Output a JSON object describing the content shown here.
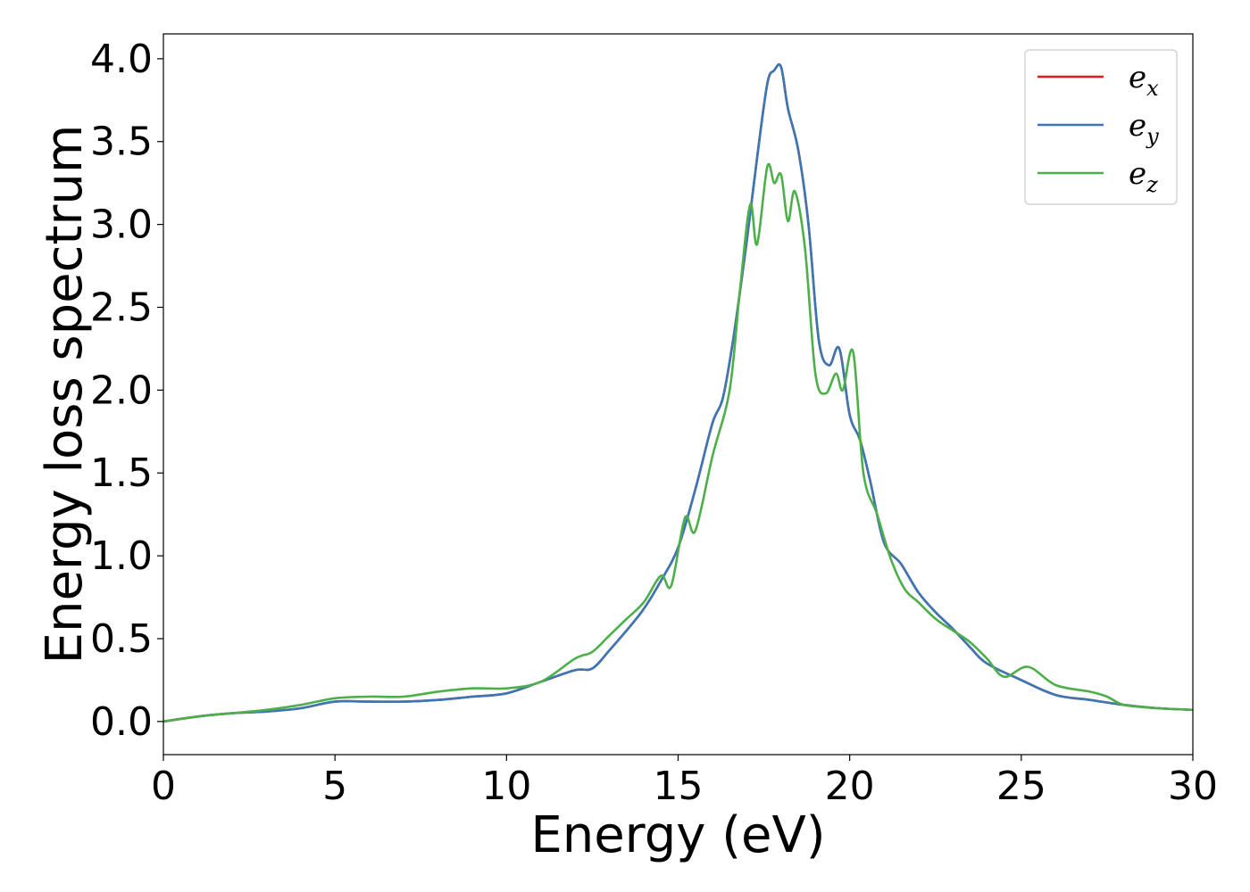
{
  "chart_data": {
    "type": "line",
    "title": "",
    "xlabel": "Energy (eV)",
    "ylabel": "Energy loss spectrum",
    "xlim": [
      0,
      30
    ],
    "ylim": [
      -0.2,
      4.15
    ],
    "xticks": [
      0,
      5,
      10,
      15,
      20,
      25,
      30
    ],
    "xtick_labels": [
      "0",
      "5",
      "10",
      "15",
      "20",
      "25",
      "30"
    ],
    "yticks": [
      0.0,
      0.5,
      1.0,
      1.5,
      2.0,
      2.5,
      3.0,
      3.5,
      4.0
    ],
    "ytick_labels": [
      "0.0",
      "0.5",
      "1.0",
      "1.5",
      "2.0",
      "2.5",
      "3.0",
      "3.5",
      "4.0"
    ],
    "grid": false,
    "legend_position": "top-right",
    "series": [
      {
        "name": "e_x",
        "legend": {
          "base": "e",
          "sub": "x"
        },
        "color": "#e41a1c",
        "x": [
          0,
          1,
          2,
          3,
          4,
          5,
          6,
          7,
          8,
          9,
          10,
          11,
          12,
          12.5,
          13,
          13.5,
          14,
          14.5,
          15,
          15.5,
          16,
          16.3,
          16.6,
          17,
          17.3,
          17.6,
          17.8,
          18,
          18.2,
          18.5,
          18.8,
          19.1,
          19.4,
          19.7,
          20,
          20.3,
          20.6,
          21,
          21.5,
          22,
          22.5,
          23,
          23.5,
          24,
          25,
          26,
          27,
          28,
          29,
          30
        ],
        "y": [
          0.0,
          0.03,
          0.05,
          0.06,
          0.08,
          0.12,
          0.12,
          0.12,
          0.13,
          0.15,
          0.17,
          0.24,
          0.31,
          0.32,
          0.43,
          0.55,
          0.68,
          0.85,
          1.05,
          1.4,
          1.8,
          1.95,
          2.3,
          2.9,
          3.4,
          3.85,
          3.93,
          3.95,
          3.7,
          3.45,
          3.0,
          2.3,
          2.15,
          2.25,
          1.85,
          1.7,
          1.45,
          1.08,
          0.95,
          0.78,
          0.66,
          0.56,
          0.45,
          0.35,
          0.25,
          0.16,
          0.13,
          0.1,
          0.08,
          0.07
        ]
      },
      {
        "name": "e_y",
        "legend": {
          "base": "e",
          "sub": "y"
        },
        "color": "#3a78b5",
        "x": [
          0,
          1,
          2,
          3,
          4,
          5,
          6,
          7,
          8,
          9,
          10,
          11,
          12,
          12.5,
          13,
          13.5,
          14,
          14.5,
          15,
          15.5,
          16,
          16.3,
          16.6,
          17,
          17.3,
          17.6,
          17.8,
          18,
          18.2,
          18.5,
          18.8,
          19.1,
          19.4,
          19.7,
          20,
          20.3,
          20.6,
          21,
          21.5,
          22,
          22.5,
          23,
          23.5,
          24,
          25,
          26,
          27,
          28,
          29,
          30
        ],
        "y": [
          0.0,
          0.03,
          0.05,
          0.06,
          0.08,
          0.12,
          0.12,
          0.12,
          0.13,
          0.15,
          0.17,
          0.24,
          0.31,
          0.32,
          0.43,
          0.55,
          0.68,
          0.85,
          1.05,
          1.4,
          1.8,
          1.95,
          2.3,
          2.9,
          3.4,
          3.85,
          3.93,
          3.95,
          3.7,
          3.45,
          3.0,
          2.3,
          2.15,
          2.25,
          1.85,
          1.7,
          1.45,
          1.08,
          0.95,
          0.78,
          0.66,
          0.56,
          0.45,
          0.35,
          0.25,
          0.16,
          0.13,
          0.1,
          0.08,
          0.07
        ]
      },
      {
        "name": "e_z",
        "legend": {
          "base": "e",
          "sub": "z"
        },
        "color": "#4daf4a",
        "x": [
          0,
          1,
          2,
          3,
          4,
          5,
          6,
          7,
          8,
          9,
          10,
          11,
          12,
          12.5,
          13,
          13.5,
          14,
          14.5,
          14.8,
          15.2,
          15.5,
          16,
          16.5,
          16.8,
          17.1,
          17.3,
          17.6,
          17.8,
          18,
          18.2,
          18.4,
          18.7,
          19,
          19.3,
          19.6,
          19.8,
          20.1,
          20.4,
          20.8,
          21.2,
          21.6,
          22,
          22.5,
          23,
          23.5,
          24,
          24.5,
          25.2,
          26,
          27,
          27.5,
          28,
          29,
          30
        ],
        "y": [
          0.0,
          0.03,
          0.05,
          0.07,
          0.1,
          0.14,
          0.15,
          0.15,
          0.18,
          0.2,
          0.2,
          0.24,
          0.38,
          0.42,
          0.52,
          0.62,
          0.72,
          0.88,
          0.82,
          1.23,
          1.15,
          1.6,
          2.0,
          2.6,
          3.12,
          2.88,
          3.35,
          3.25,
          3.3,
          3.02,
          3.2,
          2.85,
          2.1,
          1.98,
          2.1,
          2.0,
          2.23,
          1.5,
          1.25,
          0.98,
          0.8,
          0.72,
          0.62,
          0.55,
          0.48,
          0.38,
          0.27,
          0.33,
          0.22,
          0.18,
          0.15,
          0.1,
          0.08,
          0.07
        ]
      }
    ]
  }
}
